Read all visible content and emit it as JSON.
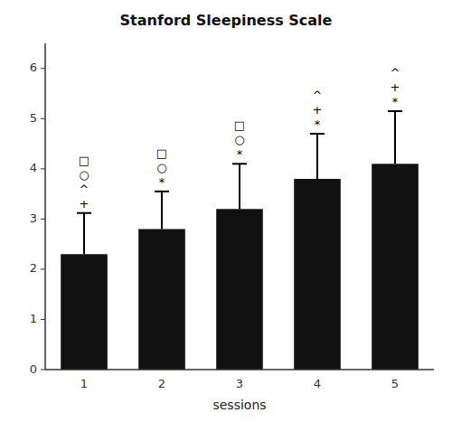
{
  "chart_data": {
    "type": "bar",
    "title": "Stanford Sleepiness Scale",
    "xlabel": "sessions",
    "categories": [
      1,
      2,
      3,
      4,
      5
    ],
    "values": [
      2.3,
      2.8,
      3.2,
      3.8,
      4.1
    ],
    "errors": [
      0.82,
      0.75,
      0.9,
      0.9,
      1.05
    ],
    "color": "#111111",
    "ylim": [
      0,
      6.5
    ],
    "yticks": [
      0,
      1,
      2,
      3,
      4,
      5,
      6
    ],
    "annotations": [
      [
        "+",
        "^",
        "○",
        "□"
      ],
      [
        "*",
        "○",
        "□"
      ],
      [
        "*",
        "○",
        "□"
      ],
      [
        "*",
        "+",
        "^"
      ],
      [
        "*",
        "+",
        "^"
      ]
    ],
    "grid": false
  }
}
